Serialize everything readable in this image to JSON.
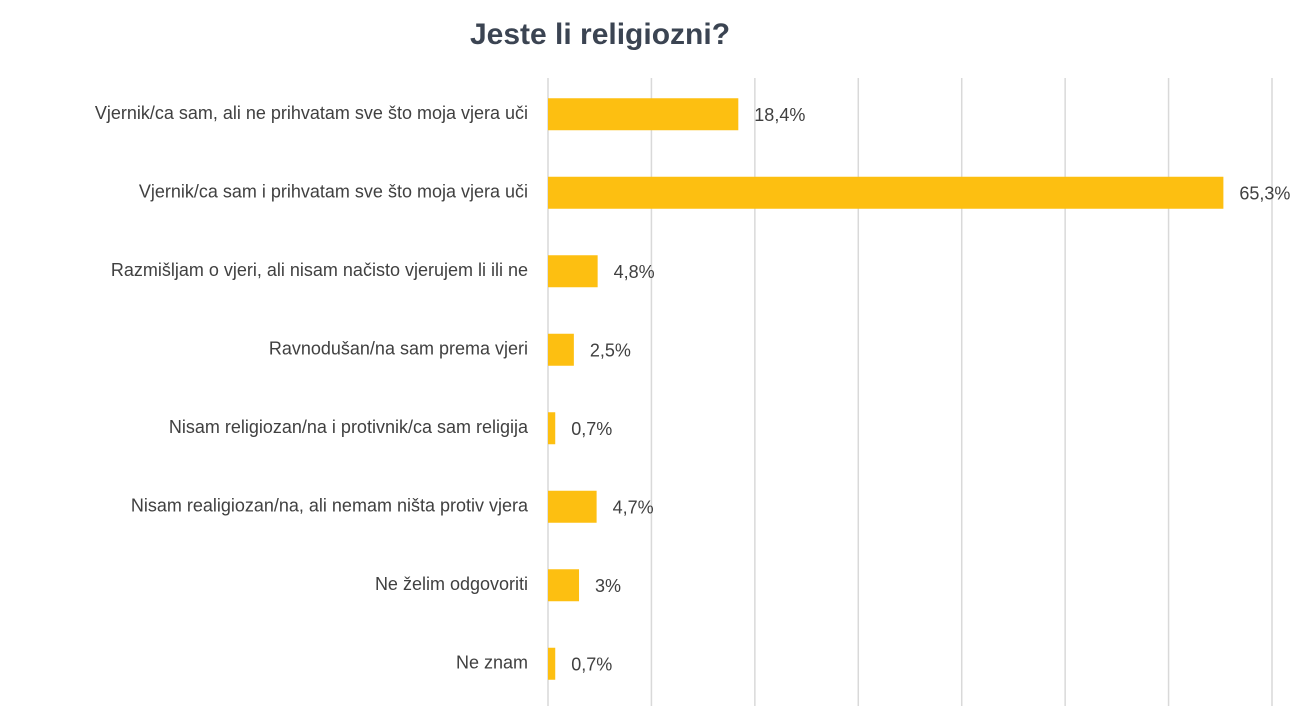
{
  "chart_data": {
    "type": "bar",
    "orientation": "horizontal",
    "title": "Jeste li religiozni?",
    "categories": [
      "Vjernik/ca sam, ali ne prihvatam sve što moja vjera uči",
      "Vjernik/ca sam i prihvatam sve što moja vjera uči",
      "Razmišljam o vjeri, ali nisam načisto vjerujem li ili ne",
      "Ravnodušan/na sam prema vjeri",
      "Nisam religiozan/na i protivnik/ca sam religija",
      "Nisam realigiozan/na, ali nemam ništa protiv vjera",
      "Ne želim odgovoriti",
      "Ne znam"
    ],
    "values": [
      18.4,
      65.3,
      4.8,
      2.5,
      0.7,
      4.7,
      3,
      0.7
    ],
    "value_labels": [
      "18,4%",
      "65,3%",
      "4,8%",
      "2,5%",
      "0,7%",
      "4,7%",
      "3%",
      "0,7%"
    ],
    "color": "#fdbf11",
    "xlim": [
      0,
      70
    ],
    "xticks": [
      0,
      10,
      20,
      30,
      40,
      50,
      60,
      70
    ],
    "grid": true
  }
}
